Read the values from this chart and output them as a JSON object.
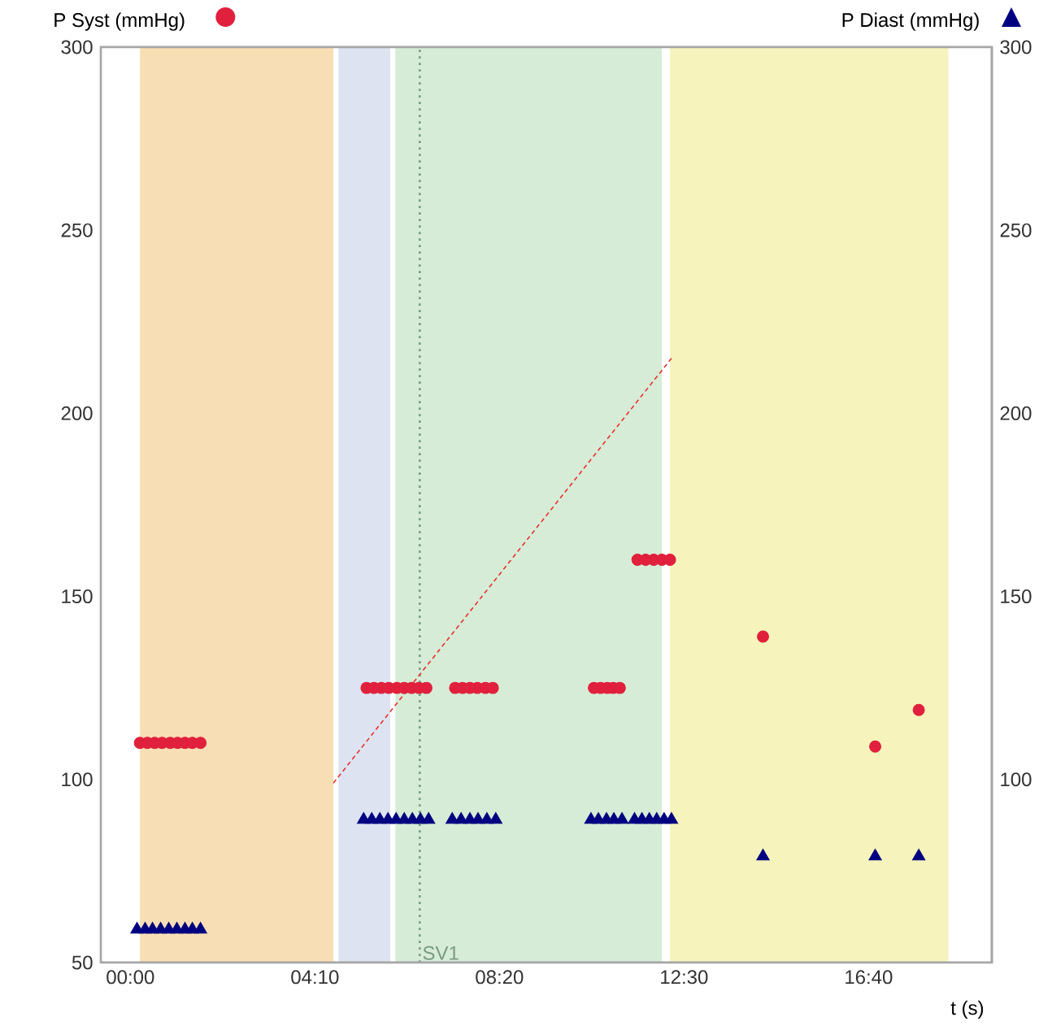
{
  "chart_data": {
    "type": "scatter",
    "xlabel": "t (s)",
    "ylabel": "P Syst (mmHg)",
    "y2label": "P Diast (mmHg)",
    "xlim": [
      -40,
      1167
    ],
    "xticks": [
      {
        "value": 0,
        "label": "00:00"
      },
      {
        "value": 250,
        "label": "04:10"
      },
      {
        "value": 500,
        "label": "08:20"
      },
      {
        "value": 750,
        "label": "12:30"
      },
      {
        "value": 1000,
        "label": "16:40"
      }
    ],
    "ylim": [
      50,
      300
    ],
    "yticks": [
      50,
      100,
      150,
      200,
      250,
      300
    ],
    "y2lim": [
      50,
      300
    ],
    "y2ticks": [
      100,
      150,
      200,
      250,
      300
    ],
    "bands": [
      {
        "axis": "x",
        "from": 13,
        "to": 275,
        "color": "#f8deb4"
      },
      {
        "axis": "x",
        "from": 282,
        "to": 352,
        "color": "#dde3f0"
      },
      {
        "axis": "x",
        "from": 359,
        "to": 720,
        "color": "#d6ecd6"
      },
      {
        "axis": "x",
        "from": 731,
        "to": 1108,
        "color": "#f6f4bc"
      }
    ],
    "ref_lines": [
      {
        "axis": "x",
        "value": 392,
        "label": "SV1",
        "color": "#7a9a84",
        "line_style": "dotted"
      }
    ],
    "series": [
      {
        "marker": "circle",
        "color": "#e0203c",
        "x": [
          13,
          23,
          33,
          43,
          54,
          64,
          74,
          84,
          95,
          320,
          330,
          340,
          350,
          361,
          371,
          381,
          391,
          401,
          440,
          450,
          460,
          470,
          481,
          491,
          628,
          637,
          646,
          654,
          663,
          687,
          698,
          709,
          720,
          731,
          857,
          1009,
          1068
        ],
        "values": [
          110,
          110,
          110,
          110,
          110,
          110,
          110,
          110,
          110,
          125,
          125,
          125,
          125,
          125,
          125,
          125,
          125,
          125,
          125,
          125,
          125,
          125,
          125,
          125,
          125,
          125,
          125,
          125,
          125,
          160,
          160,
          160,
          160,
          160,
          139,
          109,
          119
        ]
      },
      {
        "marker": "triangle",
        "color": "#000080",
        "x": [
          9,
          20,
          30,
          41,
          52,
          63,
          74,
          84,
          95,
          316,
          327,
          338,
          349,
          360,
          371,
          382,
          393,
          404,
          436,
          448,
          460,
          471,
          483,
          495,
          624,
          634,
          645,
          655,
          666,
          683,
          693,
          703,
          713,
          723,
          733,
          857,
          1009,
          1068
        ],
        "values": [
          59,
          59,
          59,
          59,
          59,
          59,
          59,
          59,
          59,
          89,
          89,
          89,
          89,
          89,
          89,
          89,
          89,
          89,
          89,
          89,
          89,
          89,
          89,
          89,
          89,
          89,
          89,
          89,
          89,
          89,
          89,
          89,
          89,
          89,
          89,
          79,
          79,
          79
        ]
      },
      {
        "type": "line",
        "marker": "none",
        "line_style": "dashed",
        "color": "#e8312f",
        "x": [
          275,
          733
        ],
        "values": [
          99,
          215
        ]
      }
    ]
  }
}
